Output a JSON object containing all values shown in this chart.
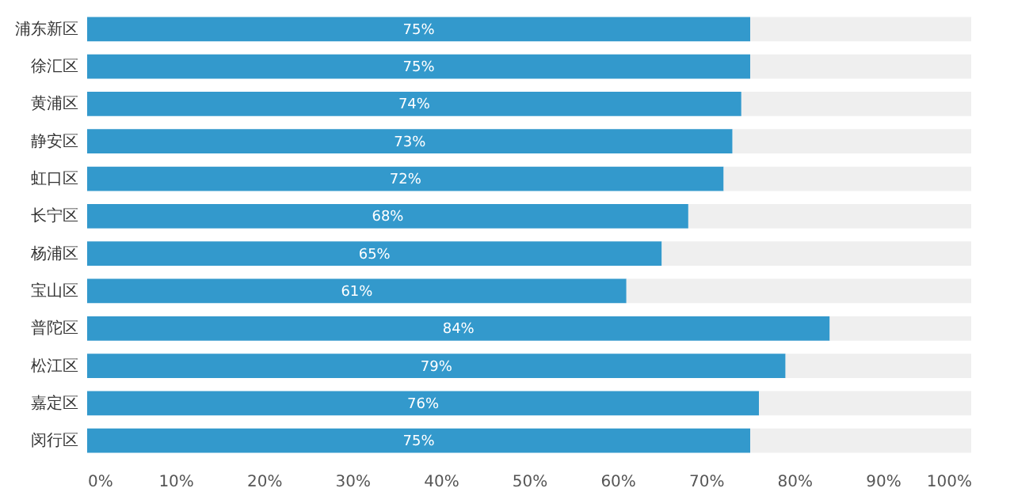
{
  "chart_data": {
    "type": "bar",
    "orientation": "horizontal",
    "stacked": true,
    "categories": [
      "浦东新区",
      "徐汇区",
      "黄浦区",
      "静安区",
      "虹口区",
      "长宁区",
      "杨浦区",
      "宝山区",
      "普陀区",
      "松江区",
      "嘉定区",
      "闵行区"
    ],
    "series": [
      {
        "color": "#3399cc",
        "values": [
          75,
          75,
          74,
          73,
          72,
          68,
          65,
          61,
          84,
          79,
          76,
          75
        ],
        "value_labels": [
          "75%",
          "75%",
          "74%",
          "73%",
          "72%",
          "68%",
          "65%",
          "61%",
          "84%",
          "79%",
          "76%",
          "75%"
        ]
      },
      {
        "color": "#efefef",
        "values": [
          25,
          25,
          26,
          27,
          28,
          32,
          35,
          39,
          16,
          21,
          24,
          25
        ]
      }
    ],
    "xlim": [
      0,
      100
    ],
    "xticks": [
      {
        "value": 0,
        "label": "0%"
      },
      {
        "value": 10,
        "label": "10%"
      },
      {
        "value": 20,
        "label": "20%"
      },
      {
        "value": 30,
        "label": "30%"
      },
      {
        "value": 40,
        "label": "40%"
      },
      {
        "value": 50,
        "label": "50%"
      },
      {
        "value": 60,
        "label": "60%"
      },
      {
        "value": 70,
        "label": "70%"
      },
      {
        "value": 80,
        "label": "80%"
      },
      {
        "value": 90,
        "label": "90%"
      },
      {
        "value": 100,
        "label": "100%"
      }
    ]
  }
}
